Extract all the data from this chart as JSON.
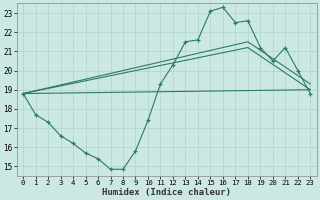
{
  "xlabel": "Humidex (Indice chaleur)",
  "bg_color": "#cce8e2",
  "grid_color": "#b8d8d0",
  "line_color": "#2a7a6a",
  "xlim": [
    -0.5,
    23.5
  ],
  "ylim": [
    14.5,
    23.5
  ],
  "xticks": [
    0,
    1,
    2,
    3,
    4,
    5,
    6,
    7,
    8,
    9,
    10,
    11,
    12,
    13,
    14,
    15,
    16,
    17,
    18,
    19,
    20,
    21,
    22,
    23
  ],
  "yticks": [
    15,
    16,
    17,
    18,
    19,
    20,
    21,
    22,
    23
  ],
  "main_x": [
    0,
    1,
    2,
    3,
    4,
    5,
    6,
    7,
    8,
    9,
    10,
    11,
    12,
    13,
    14,
    15,
    16,
    17,
    18,
    19,
    20,
    21,
    22,
    23
  ],
  "main_y": [
    18.8,
    17.7,
    17.3,
    16.6,
    16.2,
    15.7,
    15.4,
    14.85,
    14.85,
    15.8,
    17.4,
    19.3,
    20.3,
    21.5,
    21.6,
    23.1,
    23.3,
    22.5,
    22.6,
    21.2,
    20.5,
    21.2,
    20.0,
    18.8
  ],
  "trend1_x": [
    0,
    23
  ],
  "trend1_y": [
    18.8,
    19.0
  ],
  "trend2_x": [
    0,
    18,
    23
  ],
  "trend2_y": [
    18.8,
    21.2,
    19.0
  ],
  "trend3_x": [
    0,
    18,
    23
  ],
  "trend3_y": [
    18.8,
    21.5,
    19.3
  ]
}
